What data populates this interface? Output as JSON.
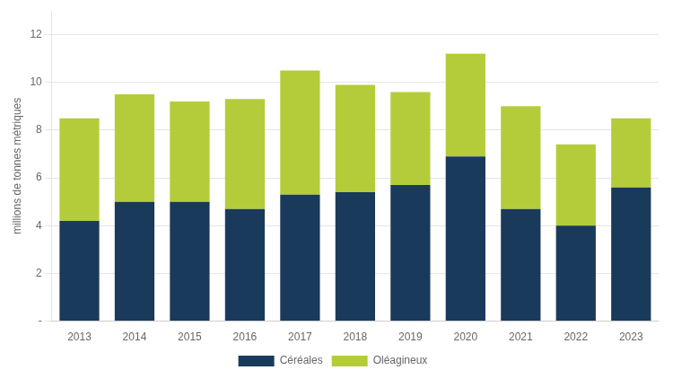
{
  "chart_data": {
    "type": "bar",
    "stacked": true,
    "categories": [
      "2013",
      "2014",
      "2015",
      "2016",
      "2017",
      "2018",
      "2019",
      "2020",
      "2021",
      "2022",
      "2023"
    ],
    "series": [
      {
        "name": "Céréales",
        "color": "#1a3a5c",
        "values": [
          4.2,
          5.0,
          5.0,
          4.7,
          5.3,
          5.4,
          5.7,
          6.9,
          4.7,
          4.0,
          5.6
        ]
      },
      {
        "name": "Oléagineux",
        "color": "#b5cc3a",
        "values": [
          4.3,
          4.5,
          4.2,
          4.6,
          5.2,
          4.5,
          3.9,
          4.3,
          4.3,
          3.4,
          2.9
        ]
      }
    ],
    "ylabel": "millions de tonnes métriques",
    "ylim": [
      0,
      13
    ],
    "yticks": [
      {
        "value": 0,
        "label": "-"
      },
      2,
      4,
      6,
      8,
      10,
      12
    ],
    "grid": true,
    "legend": "bottom"
  }
}
